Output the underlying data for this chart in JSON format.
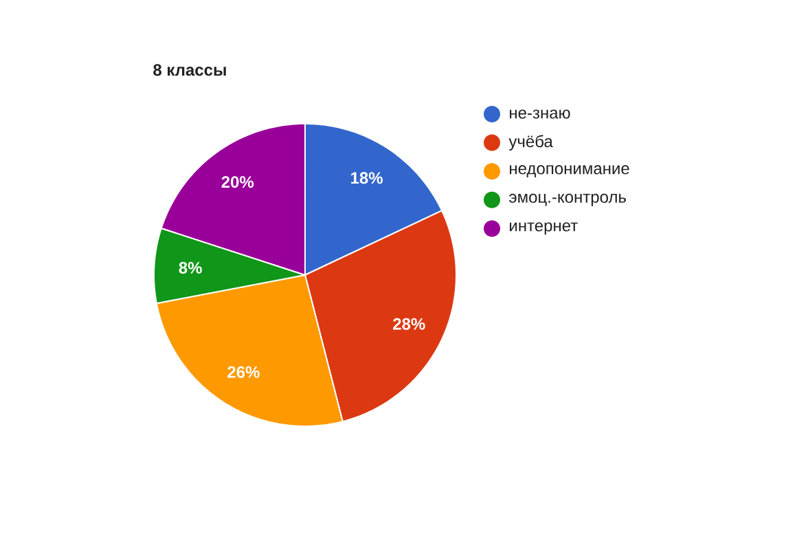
{
  "chart_data": {
    "type": "pie",
    "title": "8 классы",
    "categories": [
      "не-знаю",
      "учёба",
      "недопонимание",
      "эмоц.-контроль",
      "интернет"
    ],
    "values": [
      18,
      28,
      26,
      8,
      20
    ],
    "value_labels": [
      "18%",
      "28%",
      "26%",
      "8%",
      "20%"
    ],
    "colors": [
      "#3366cc",
      "#dc3912",
      "#ff9900",
      "#109618",
      "#990099"
    ],
    "legend": "right"
  }
}
